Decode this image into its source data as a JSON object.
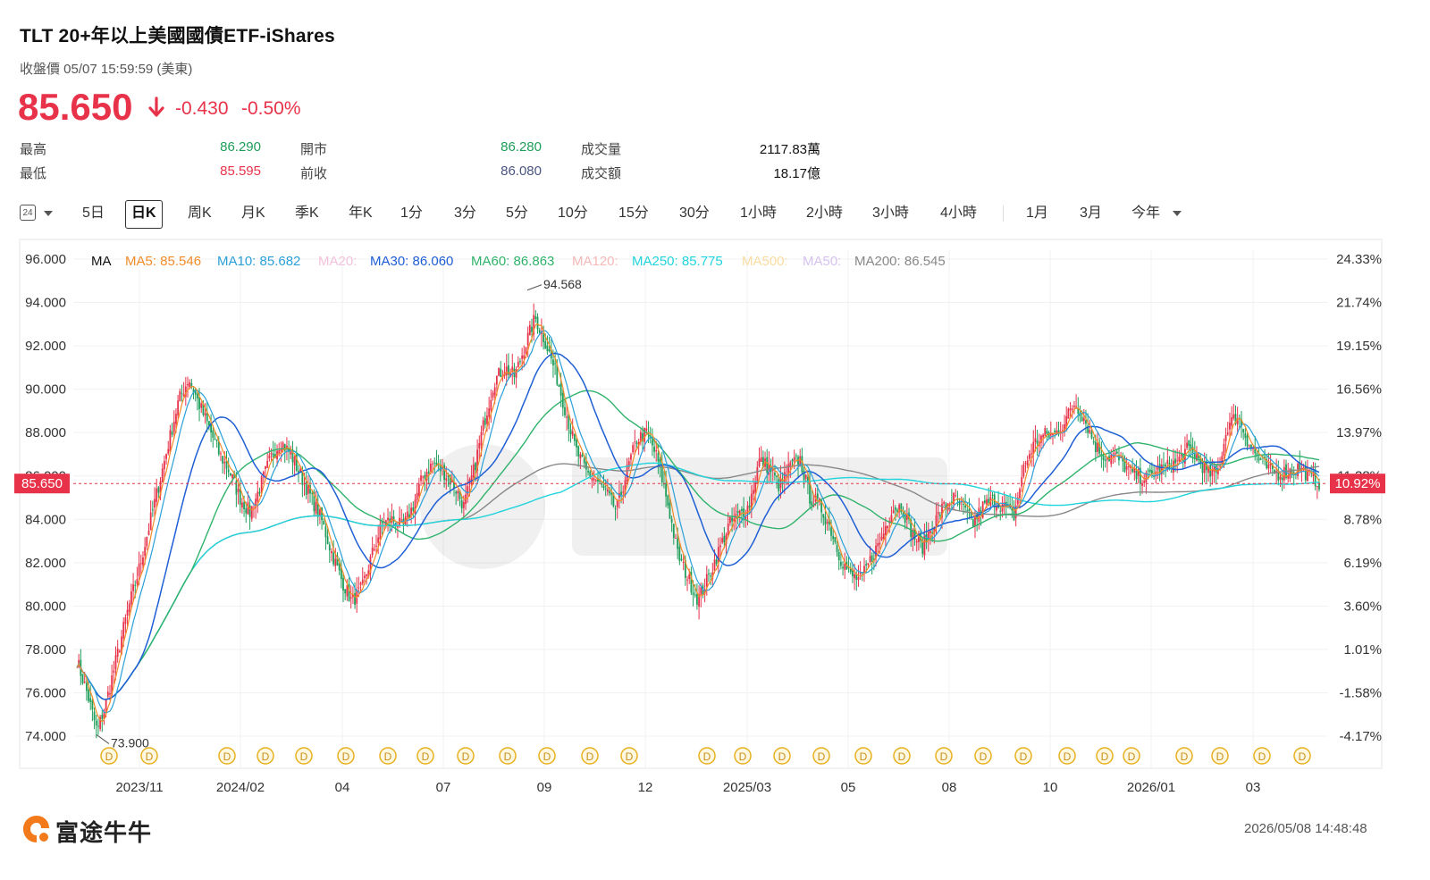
{
  "header": {
    "title": "TLT  20+年以上美國國債ETF-iShares",
    "subtitle": "收盤價 05/07 15:59:59 (美東)",
    "price": "85.650",
    "change": "-0.430",
    "change_pct": "-0.50%"
  },
  "stats": {
    "high_label": "最高",
    "high": "86.290",
    "low_label": "最低",
    "low": "85.595",
    "open_label": "開市",
    "open": "86.280",
    "prev_label": "前收",
    "prev": "86.080",
    "vol_label": "成交量",
    "vol": "2117.83萬",
    "amt_label": "成交額",
    "amt": "18.17億"
  },
  "tabs": {
    "icon_label": "24",
    "items": [
      "5日",
      "日K",
      "周K",
      "月K",
      "季K",
      "年K",
      "1分",
      "3分",
      "5分",
      "10分",
      "15分",
      "30分",
      "1小時",
      "2小時",
      "3小時",
      "4小時",
      "1月",
      "3月",
      "今年"
    ],
    "active": "日K"
  },
  "colors": {
    "up": "#e8324a",
    "down": "#1e9e5a"
  },
  "chart_data": {
    "type": "line",
    "y_axis_left": [
      "96.000",
      "94.000",
      "92.000",
      "90.000",
      "88.000",
      "86.000",
      "84.000",
      "82.000",
      "80.000",
      "78.000",
      "76.000",
      "74.000"
    ],
    "y_axis_right": [
      "24.33%",
      "21.74%",
      "19.15%",
      "16.56%",
      "13.97%",
      "11.38%",
      "8.78%",
      "6.19%",
      "3.60%",
      "1.01%",
      "-1.58%",
      "-4.17%"
    ],
    "ylim": [
      74,
      96
    ],
    "x_labels": [
      "2023/11",
      "2024/02",
      "04",
      "07",
      "09",
      "12",
      "2025/03",
      "05",
      "08",
      "10",
      "2026/01",
      "03"
    ],
    "current_price_label": "85.650",
    "current_pct_label": "10.92%",
    "annotations": {
      "max": "94.568",
      "min": "73.900"
    },
    "dividend_marker": "D",
    "legend": {
      "title": "MA",
      "items": [
        {
          "label": "MA5: 85.546",
          "color": "#f28c28"
        },
        {
          "label": "MA10: 85.682",
          "color": "#2aa0d8"
        },
        {
          "label": "MA20:",
          "color": "#f3c2dc"
        },
        {
          "label": "MA30: 86.060",
          "color": "#1f5fd6"
        },
        {
          "label": "MA60: 86.863",
          "color": "#2fb36b"
        },
        {
          "label": "MA120:",
          "color": "#f6b8b8"
        },
        {
          "label": "MA250: 85.775",
          "color": "#20d4dc"
        },
        {
          "label": "MA500:",
          "color": "#f9dca0"
        },
        {
          "label": "MA50:",
          "color": "#d6c2f0"
        },
        {
          "label": "MA200: 86.545",
          "color": "#888888"
        }
      ]
    },
    "close_anchors": [
      77.5,
      76.0,
      74.2,
      75.8,
      77.8,
      79.8,
      81.5,
      83.5,
      85.5,
      87.5,
      89.5,
      90.5,
      89.3,
      88.2,
      87.0,
      86.2,
      85.0,
      84.3,
      85.5,
      86.8,
      87.6,
      87.0,
      86.0,
      85.0,
      84.0,
      82.5,
      81.2,
      80.2,
      80.8,
      82.4,
      83.8,
      84.0,
      83.6,
      84.6,
      86.0,
      86.6,
      86.2,
      85.6,
      84.6,
      86.3,
      88.5,
      90.4,
      91.0,
      90.6,
      92.0,
      93.3,
      92.2,
      90.8,
      89.0,
      87.2,
      86.2,
      85.8,
      85.2,
      84.4,
      86.2,
      87.7,
      88.0,
      86.8,
      84.8,
      82.4,
      81.3,
      80.3,
      81.3,
      82.5,
      83.7,
      84.2,
      84.6,
      86.7,
      86.4,
      85.5,
      86.4,
      86.8,
      85.0,
      84.6,
      83.6,
      82.2,
      81.4,
      81.2,
      82.2,
      83.1,
      84.5,
      84.6,
      83.4,
      82.7,
      83.7,
      84.5,
      85.0,
      84.5,
      83.8,
      84.6,
      84.9,
      84.6,
      84.1,
      86.4,
      87.5,
      87.9,
      87.9,
      88.5,
      89.4,
      88.6,
      87.4,
      86.9,
      86.9,
      86.4,
      86.0,
      85.9,
      86.2,
      86.4,
      86.6,
      87.2,
      86.9,
      86.1,
      86.1,
      88.3,
      88.8,
      87.6,
      86.8,
      86.3,
      86.1,
      86.2,
      86.4,
      86.0,
      85.7
    ]
  },
  "footer": {
    "logo": "富途牛牛",
    "timestamp": "2026/05/08 14:48:48"
  }
}
